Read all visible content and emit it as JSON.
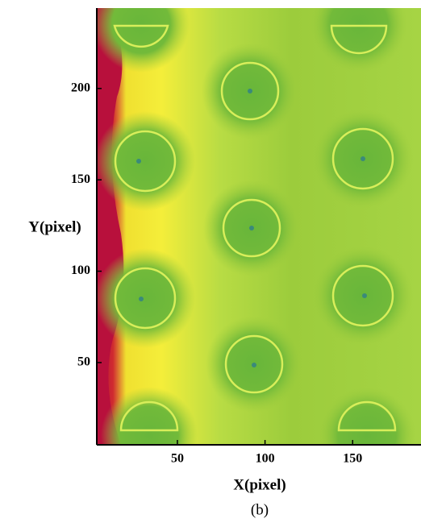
{
  "chart_data": {
    "type": "image",
    "caption": "(b)",
    "x_label": "X(pixel)",
    "y_label": "Y(pixel)",
    "xlim": [
      4,
      189
    ],
    "ylim": [
      5,
      244
    ],
    "xticks": [
      50,
      100,
      150
    ],
    "yticks": [
      50,
      100,
      150,
      200
    ]
  }
}
